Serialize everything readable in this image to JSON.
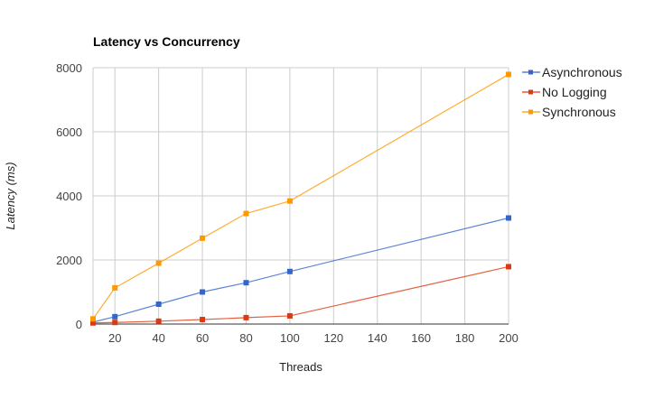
{
  "chart_data": {
    "type": "line",
    "title": "Latency vs Concurrency",
    "xlabel": "Threads",
    "ylabel": "Latency (ms)",
    "x": [
      10,
      20,
      40,
      60,
      80,
      100,
      200
    ],
    "xlim": [
      10,
      200
    ],
    "ylim": [
      0,
      8000
    ],
    "xticks": [
      20,
      40,
      60,
      80,
      100,
      120,
      140,
      160,
      180,
      200
    ],
    "yticks": [
      0,
      2000,
      4000,
      6000,
      8000
    ],
    "grid": true,
    "legend_position": "right",
    "series": [
      {
        "name": "Asynchronous",
        "color": "#3366cc",
        "values": [
          60,
          230,
          620,
          1000,
          1290,
          1640,
          3310
        ]
      },
      {
        "name": "No Logging",
        "color": "#dc3912",
        "values": [
          35,
          50,
          90,
          140,
          200,
          255,
          1790
        ]
      },
      {
        "name": "Synchronous",
        "color": "#ff9900",
        "values": [
          160,
          1130,
          1900,
          2680,
          3450,
          3840,
          7790
        ]
      }
    ]
  }
}
